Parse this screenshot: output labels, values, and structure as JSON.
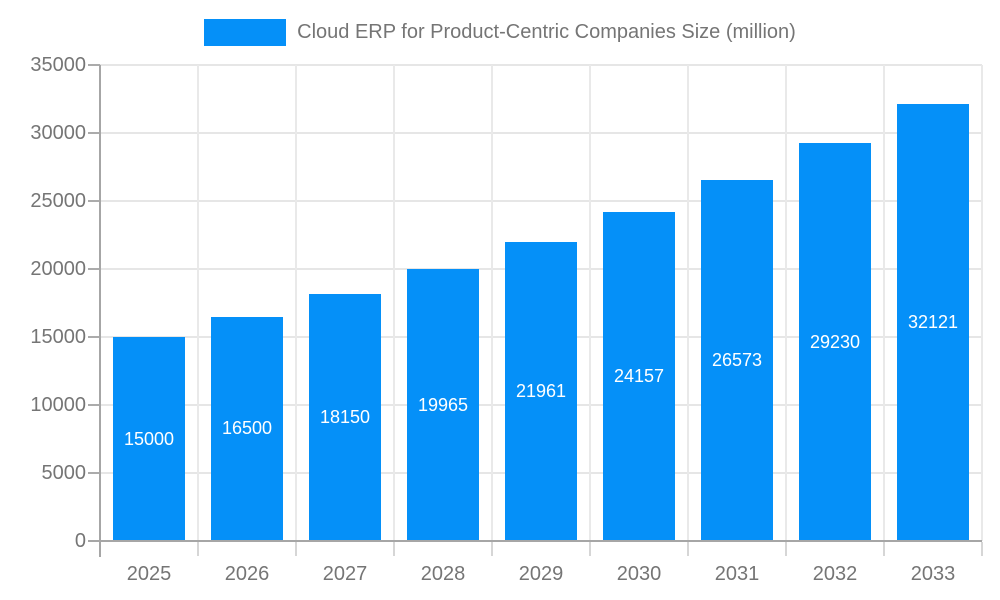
{
  "chart_data": {
    "type": "bar",
    "title": "Cloud ERP for Product-Centric Companies Size (million)",
    "legend": {
      "position": "top",
      "entries": [
        "Cloud ERP for Product-Centric Companies Size (million)"
      ]
    },
    "categories": [
      "2025",
      "2026",
      "2027",
      "2028",
      "2029",
      "2030",
      "2031",
      "2032",
      "2033"
    ],
    "values": [
      15000,
      16500,
      18150,
      19965,
      21961,
      24157,
      26573,
      29230,
      32121
    ],
    "value_labels": [
      "15000",
      "16500",
      "18150",
      "19965",
      "21961",
      "24157",
      "26573",
      "29230",
      "32121"
    ],
    "xlabel": "",
    "ylabel": "",
    "ylim": [
      0,
      35000
    ],
    "ytick_step": 5000,
    "yticks": [
      0,
      5000,
      10000,
      15000,
      20000,
      25000,
      30000,
      35000
    ],
    "grid": true,
    "colors": {
      "bar": "#0590f8",
      "bar_value_text": "#ffffff",
      "axis_text": "#757575",
      "axis_line": "#a6a6a6",
      "gridline": "#e6e6e6",
      "background": "#ffffff"
    }
  }
}
